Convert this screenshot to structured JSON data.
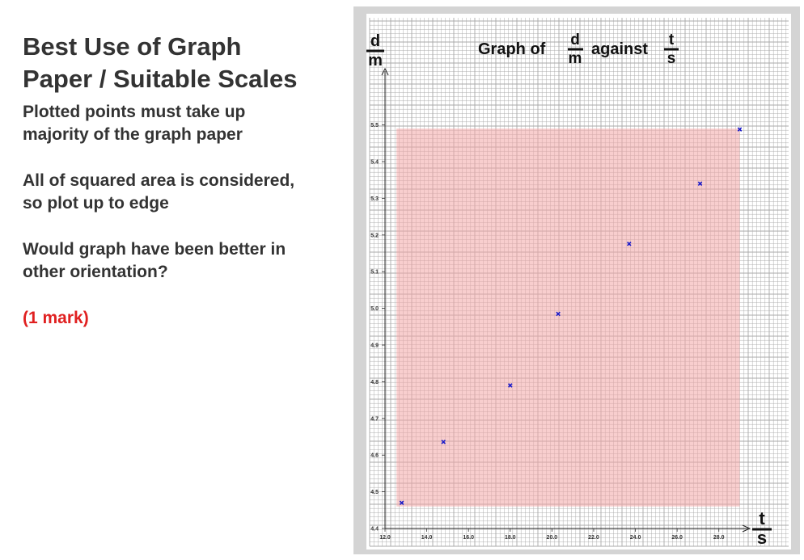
{
  "slide": {
    "title_line1": "Best Use of Graph",
    "title_line2": "Paper / Suitable Scales",
    "para1_line1": "Plotted points must take up",
    "para1_line2": "majority of the graph paper",
    "para2_line1": "All of squared area is considered,",
    "para2_line2": "so plot up to edge",
    "para3_line1": "Would graph have been better in",
    "para3_line2": "other orientation?",
    "mark": "(1 mark)"
  },
  "colors": {
    "text": "#333333",
    "mark": "#e02020",
    "grid": "#a9a9a9",
    "highlight": "#f2a5a5",
    "points": "#1a1ac8"
  },
  "chart_data": {
    "type": "scatter",
    "title_prefix": "Graph of",
    "title_middle": "against",
    "y_var_num": "d",
    "y_var_den": "m",
    "x_var_num": "t",
    "x_var_den": "s",
    "xlim": [
      12.0,
      29.6
    ],
    "ylim": [
      4.4,
      5.66
    ],
    "x_ticks": [
      "12.0",
      "14.0",
      "16.0",
      "18.0",
      "20.0",
      "22.0",
      "24.0",
      "26.0",
      "28.0"
    ],
    "y_ticks": [
      "4.4",
      "4.5",
      "4.6",
      "4.7",
      "4.8",
      "4.9",
      "5.0",
      "5.1",
      "5.2",
      "5.3",
      "5.4",
      "5.5"
    ],
    "grid": true,
    "highlight_region": {
      "x": [
        12.55,
        29.0
      ],
      "y": [
        4.46,
        5.49
      ]
    },
    "x": [
      12.8,
      14.8,
      18.0,
      20.3,
      23.7,
      27.1,
      29.0
    ],
    "y": [
      4.47,
      4.636,
      4.79,
      4.985,
      5.176,
      5.34,
      5.488
    ]
  }
}
